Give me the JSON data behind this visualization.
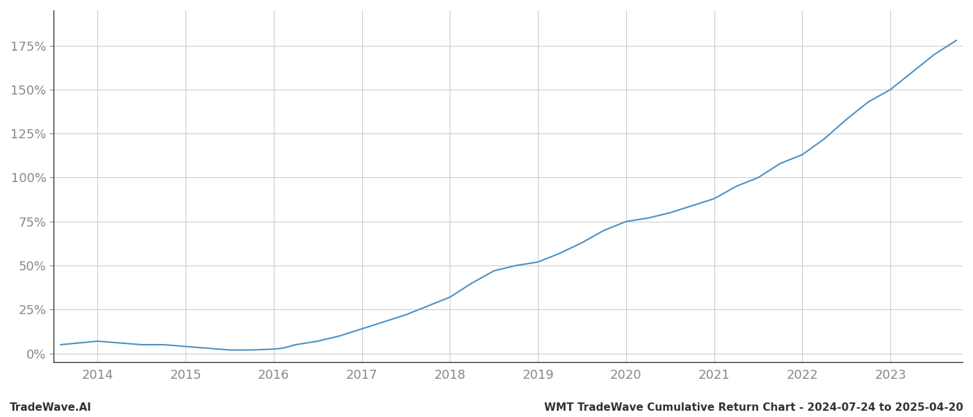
{
  "title": "WMT TradeWave Cumulative Return Chart - 2024-07-24 to 2025-04-20",
  "watermark": "TradeWave.AI",
  "line_color": "#4a90c4",
  "background_color": "#ffffff",
  "grid_color": "#cccccc",
  "spine_color": "#333333",
  "tick_color": "#888888",
  "x_years": [
    2014,
    2015,
    2016,
    2017,
    2018,
    2019,
    2020,
    2021,
    2022,
    2023
  ],
  "y_ticks": [
    0,
    25,
    50,
    75,
    100,
    125,
    150,
    175
  ],
  "xlim": [
    2013.5,
    2023.82
  ],
  "ylim": [
    -5,
    195
  ],
  "data_x": [
    2013.58,
    2014.0,
    2014.25,
    2014.5,
    2014.75,
    2015.0,
    2015.25,
    2015.5,
    2015.75,
    2016.0,
    2016.1,
    2016.25,
    2016.5,
    2016.75,
    2017.0,
    2017.25,
    2017.5,
    2017.75,
    2018.0,
    2018.25,
    2018.5,
    2018.75,
    2019.0,
    2019.25,
    2019.5,
    2019.75,
    2020.0,
    2020.25,
    2020.5,
    2020.75,
    2021.0,
    2021.25,
    2021.5,
    2021.75,
    2022.0,
    2022.25,
    2022.5,
    2022.75,
    2023.0,
    2023.25,
    2023.5,
    2023.75
  ],
  "data_y": [
    5,
    7,
    6,
    5,
    5,
    4,
    3,
    2,
    2,
    2.5,
    3,
    5,
    7,
    10,
    14,
    18,
    22,
    27,
    32,
    40,
    47,
    50,
    52,
    57,
    63,
    70,
    75,
    77,
    80,
    84,
    88,
    95,
    100,
    108,
    113,
    122,
    133,
    143,
    150,
    160,
    170,
    178
  ],
  "line_width": 1.5,
  "title_fontsize": 11,
  "watermark_fontsize": 11,
  "tick_fontsize": 13
}
